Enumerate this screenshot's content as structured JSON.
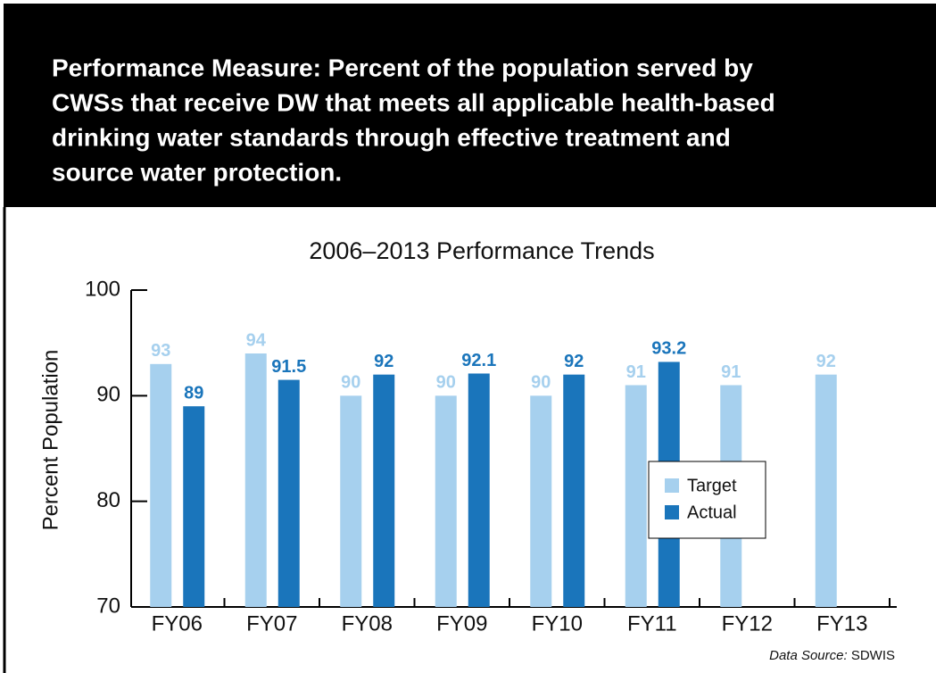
{
  "header": {
    "title_lines": [
      "Performance Measure: Percent of the population served by",
      "CWSs that receive DW that meets all applicable health-based",
      "drinking water standards through effective treatment and",
      "source water protection."
    ]
  },
  "chart_data": {
    "type": "bar",
    "title": "2006–2013 Performance Trends",
    "y_label": "Percent Population",
    "categories": [
      "FY06",
      "FY07",
      "FY08",
      "FY09",
      "FY10",
      "FY11",
      "FY12",
      "FY13"
    ],
    "series": [
      {
        "name": "Target",
        "color": "#a6d0ee",
        "values": [
          93,
          94,
          90,
          90,
          90,
          91,
          91,
          92
        ]
      },
      {
        "name": "Actual",
        "color": "#1a75bb",
        "values": [
          89,
          91.5,
          92,
          92.1,
          92,
          93.2,
          null,
          null
        ]
      }
    ],
    "ylim": [
      70,
      100
    ],
    "yticks": [
      70,
      80,
      90,
      100
    ],
    "grid": false,
    "legend": "lower right",
    "source_label": "Data Source:",
    "source": "SDWIS"
  }
}
